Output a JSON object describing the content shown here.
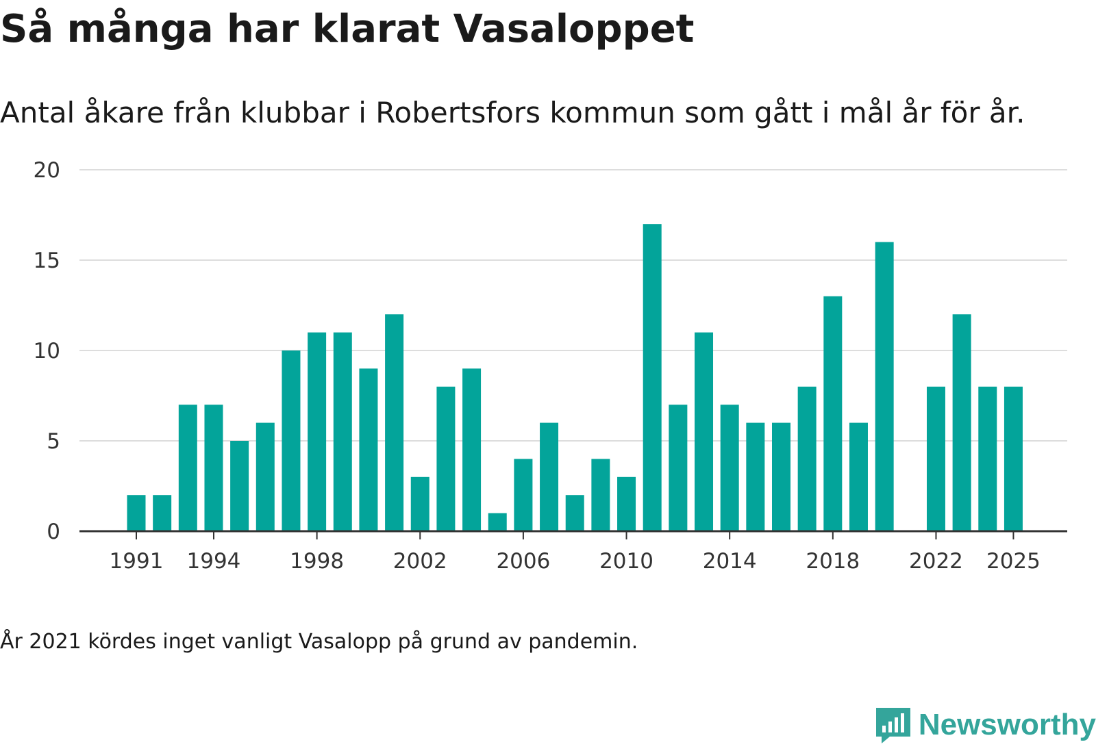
{
  "title": "Så många har klarat Vasaloppet",
  "subtitle": "Antal åkare från klubbar i Robertsfors kommun som gått i mål år för år.",
  "note": "År 2021 kördes inget vanligt Vasalopp på grund av pandemin.",
  "brand": {
    "name": "Newsworthy",
    "icon": "newsworthy-logo-icon"
  },
  "colors": {
    "bar": "#03a49a",
    "grid": "#dddddd",
    "axis": "#333333",
    "brand": "#34a59b"
  },
  "chart_data": {
    "type": "bar",
    "title": "Så många har klarat Vasaloppet",
    "xlabel": "",
    "ylabel": "",
    "ylim": [
      0,
      20
    ],
    "yticks": [
      0,
      5,
      10,
      15,
      20
    ],
    "xticks": [
      1991,
      1994,
      1998,
      2002,
      2006,
      2010,
      2014,
      2018,
      2022,
      2025
    ],
    "grid": true,
    "categories": [
      1991,
      1992,
      1993,
      1994,
      1995,
      1996,
      1997,
      1998,
      1999,
      2000,
      2001,
      2002,
      2003,
      2004,
      2005,
      2006,
      2007,
      2008,
      2009,
      2010,
      2011,
      2012,
      2013,
      2014,
      2015,
      2016,
      2017,
      2018,
      2019,
      2020,
      2021,
      2022,
      2023,
      2024,
      2025
    ],
    "values": [
      2,
      2,
      7,
      7,
      5,
      6,
      10,
      11,
      11,
      9,
      12,
      3,
      8,
      9,
      1,
      4,
      6,
      2,
      4,
      3,
      17,
      7,
      11,
      7,
      6,
      6,
      8,
      13,
      6,
      16,
      null,
      8,
      12,
      8,
      8
    ]
  }
}
